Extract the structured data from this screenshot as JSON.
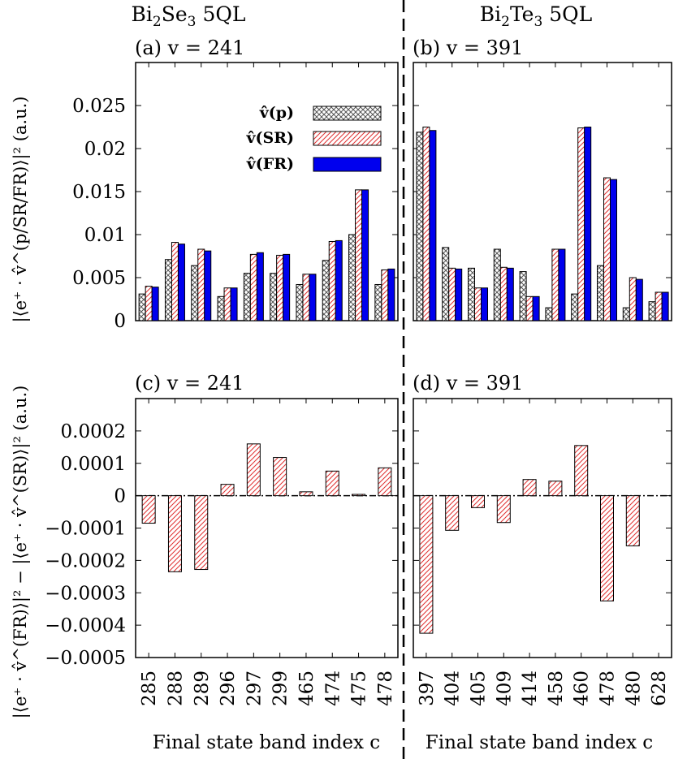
{
  "header": {
    "left_html": "Bi<tspan font-size='17' dy='6'>2</tspan><tspan dy='-6'>Se</tspan><tspan font-size='17' dy='6'>3</tspan><tspan dy='-6'> 5QL</tspan>",
    "right_html": "Bi<tspan font-size='17' dy='6'>2</tspan><tspan dy='-6'>Te</tspan><tspan font-size='17' dy='6'>3</tspan><tspan dy='-6'> 5QL</tspan>"
  },
  "colors": {
    "series_p": "#555555",
    "series_sr": "#e03030",
    "series_fr": "#0000ee",
    "zero_line": "#000000"
  },
  "chart_data": [
    {
      "id": "a",
      "type": "bar",
      "title": "(a) v = 241",
      "ylabel": "|⟨e⁺ · v̂^(p/SR/FR)⟩|² (a.u.)",
      "ylim": [
        0,
        0.03
      ],
      "yticks": [
        "0",
        "0.005",
        "0.01",
        "0.015",
        "0.02",
        "0.025"
      ],
      "yticks_v": [
        0,
        0.005,
        0.01,
        0.015,
        0.02,
        0.025
      ],
      "categories": [
        "285",
        "288",
        "289",
        "296",
        "297",
        "299",
        "465",
        "474",
        "475",
        "478"
      ],
      "legend": [
        "v̂(p)",
        "v̂(SR)",
        "v̂(FR)"
      ],
      "series": [
        {
          "name": "v̂(p)",
          "values": [
            0.0031,
            0.0071,
            0.0064,
            0.0028,
            0.0055,
            0.0055,
            0.0042,
            0.007,
            0.01,
            0.0042
          ]
        },
        {
          "name": "v̂(SR)",
          "values": [
            0.004,
            0.0091,
            0.0083,
            0.0038,
            0.0077,
            0.0076,
            0.0054,
            0.0092,
            0.0152,
            0.0059
          ]
        },
        {
          "name": "v̂(FR)",
          "values": [
            0.0039,
            0.0089,
            0.0081,
            0.0038,
            0.0079,
            0.0077,
            0.0054,
            0.0093,
            0.0152,
            0.006
          ]
        }
      ]
    },
    {
      "id": "b",
      "type": "bar",
      "title": "(b) v = 391",
      "ylim": [
        0,
        0.03
      ],
      "categories": [
        "397",
        "404",
        "405",
        "409",
        "414",
        "458",
        "460",
        "478",
        "480",
        "628"
      ],
      "series": [
        {
          "name": "v̂(p)",
          "values": [
            0.0219,
            0.0085,
            0.0061,
            0.0083,
            0.0057,
            0.0015,
            0.0031,
            0.0064,
            0.0015,
            0.0022
          ]
        },
        {
          "name": "v̂(SR)",
          "values": [
            0.0225,
            0.0061,
            0.0038,
            0.0062,
            0.0028,
            0.0083,
            0.0224,
            0.0166,
            0.005,
            0.0033
          ]
        },
        {
          "name": "v̂(FR)",
          "values": [
            0.0221,
            0.006,
            0.0038,
            0.0061,
            0.0028,
            0.0083,
            0.0225,
            0.0164,
            0.0048,
            0.0033
          ]
        }
      ]
    },
    {
      "id": "c",
      "type": "bar",
      "title": "(c) v = 241",
      "ylabel": "|⟨e⁺ · v̂^(FR)⟩|² − |⟨e⁺ · v̂^(SR)⟩|² (a.u.)",
      "ylim": [
        -0.0005,
        0.0003
      ],
      "yticks": [
        "0.0002",
        "0.0001",
        "0",
        "−0.0001",
        "−0.0002",
        "−0.0003",
        "−0.0004",
        "−0.0005"
      ],
      "yticks_v": [
        0.0002,
        0.0001,
        0,
        -0.0001,
        -0.0002,
        -0.0003,
        -0.0004,
        -0.0005
      ],
      "xlabel": "Final state band index c",
      "categories": [
        "285",
        "288",
        "289",
        "296",
        "297",
        "299",
        "465",
        "474",
        "475",
        "478"
      ],
      "values": [
        -8.5e-05,
        -0.000235,
        -0.000228,
        3.5e-05,
        0.00016,
        0.000118,
        1.2e-05,
        7.6e-05,
        4e-06,
        8.6e-05
      ]
    },
    {
      "id": "d",
      "type": "bar",
      "title": "(d) v = 391",
      "ylim": [
        -0.0005,
        0.0003
      ],
      "xlabel": "Final state band index c",
      "categories": [
        "397",
        "404",
        "405",
        "409",
        "414",
        "458",
        "460",
        "478",
        "480",
        "628"
      ],
      "values": [
        -0.000425,
        -0.000107,
        -3.7e-05,
        -8.3e-05,
        5e-05,
        4.5e-05,
        0.000155,
        -0.000325,
        -0.000155,
        0
      ]
    }
  ]
}
